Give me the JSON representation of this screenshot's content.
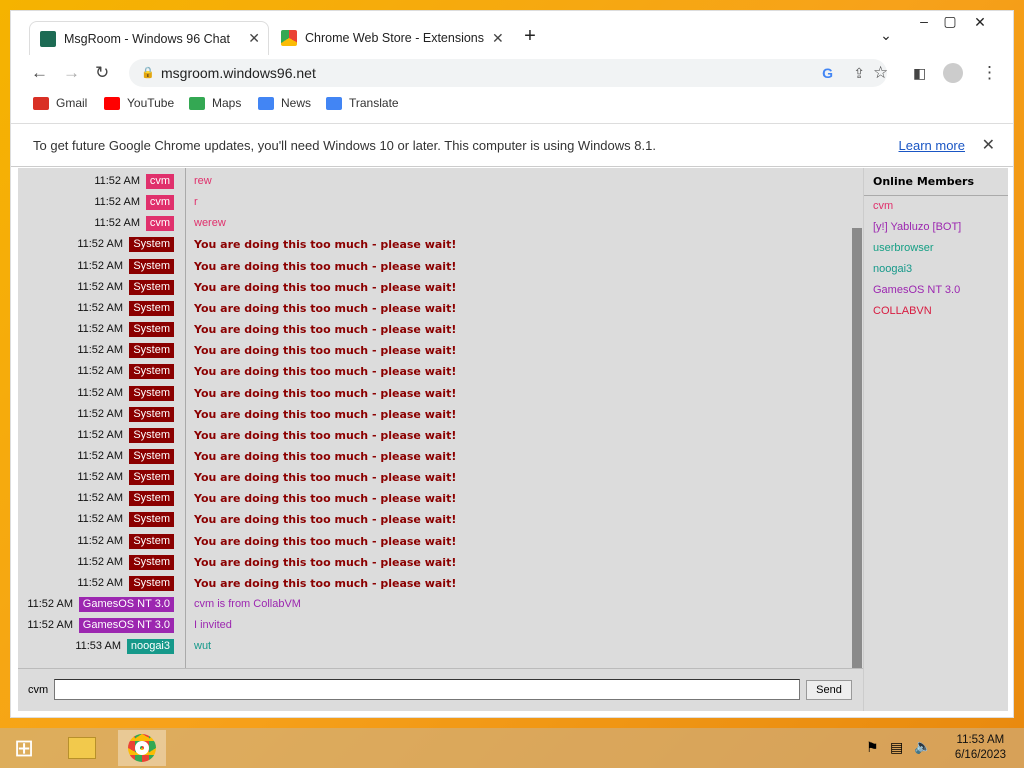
{
  "browser": {
    "tabs": [
      {
        "title": "MsgRoom - Windows 96 Chat"
      },
      {
        "title": "Chrome Web Store - Extensions"
      }
    ],
    "url": "msgroom.windows96.net",
    "bookmarks": [
      {
        "label": "Gmail",
        "color": "#d93025"
      },
      {
        "label": "YouTube",
        "color": "#ff0000"
      },
      {
        "label": "Maps",
        "color": "#34a853"
      },
      {
        "label": "News",
        "color": "#4285f4"
      },
      {
        "label": "Translate",
        "color": "#4285f4"
      }
    ],
    "infobar": {
      "text": "To get future Google Chrome updates, you'll need Windows 10 or later. This computer is using Windows 8.1.",
      "link": "Learn more"
    }
  },
  "chat": {
    "messages": [
      {
        "time": "11:52 AM",
        "user": "cvm",
        "color": "#e0306c",
        "text": "rew"
      },
      {
        "time": "11:52 AM",
        "user": "cvm",
        "color": "#e0306c",
        "text": "r"
      },
      {
        "time": "11:52 AM",
        "user": "cvm",
        "color": "#e0306c",
        "text": "werew"
      },
      {
        "time": "11:52 AM",
        "user": "System",
        "color": "#8b0000",
        "text": "You are doing this too much - please wait!",
        "system": true
      },
      {
        "time": "11:52 AM",
        "user": "System",
        "color": "#8b0000",
        "text": "You are doing this too much - please wait!",
        "system": true
      },
      {
        "time": "11:52 AM",
        "user": "System",
        "color": "#8b0000",
        "text": "You are doing this too much - please wait!",
        "system": true
      },
      {
        "time": "11:52 AM",
        "user": "System",
        "color": "#8b0000",
        "text": "You are doing this too much - please wait!",
        "system": true
      },
      {
        "time": "11:52 AM",
        "user": "System",
        "color": "#8b0000",
        "text": "You are doing this too much - please wait!",
        "system": true
      },
      {
        "time": "11:52 AM",
        "user": "System",
        "color": "#8b0000",
        "text": "You are doing this too much - please wait!",
        "system": true
      },
      {
        "time": "11:52 AM",
        "user": "System",
        "color": "#8b0000",
        "text": "You are doing this too much - please wait!",
        "system": true
      },
      {
        "time": "11:52 AM",
        "user": "System",
        "color": "#8b0000",
        "text": "You are doing this too much - please wait!",
        "system": true
      },
      {
        "time": "11:52 AM",
        "user": "System",
        "color": "#8b0000",
        "text": "You are doing this too much - please wait!",
        "system": true
      },
      {
        "time": "11:52 AM",
        "user": "System",
        "color": "#8b0000",
        "text": "You are doing this too much - please wait!",
        "system": true
      },
      {
        "time": "11:52 AM",
        "user": "System",
        "color": "#8b0000",
        "text": "You are doing this too much - please wait!",
        "system": true
      },
      {
        "time": "11:52 AM",
        "user": "System",
        "color": "#8b0000",
        "text": "You are doing this too much - please wait!",
        "system": true
      },
      {
        "time": "11:52 AM",
        "user": "System",
        "color": "#8b0000",
        "text": "You are doing this too much - please wait!",
        "system": true
      },
      {
        "time": "11:52 AM",
        "user": "System",
        "color": "#8b0000",
        "text": "You are doing this too much - please wait!",
        "system": true
      },
      {
        "time": "11:52 AM",
        "user": "System",
        "color": "#8b0000",
        "text": "You are doing this too much - please wait!",
        "system": true
      },
      {
        "time": "11:52 AM",
        "user": "System",
        "color": "#8b0000",
        "text": "You are doing this too much - please wait!",
        "system": true
      },
      {
        "time": "11:52 AM",
        "user": "System",
        "color": "#8b0000",
        "text": "You are doing this too much - please wait!",
        "system": true
      },
      {
        "time": "11:52 AM",
        "user": "GamesOS NT 3.0",
        "color": "#9c27b0",
        "text": "cvm is from CollabVM"
      },
      {
        "time": "11:52 AM",
        "user": "GamesOS NT 3.0",
        "color": "#9c27b0",
        "text": "I invited"
      },
      {
        "time": "11:53 AM",
        "user": "noogai3",
        "color": "#16998a",
        "text": "wut"
      }
    ],
    "current_user": "cvm",
    "input_value": "",
    "send_label": "Send"
  },
  "members": {
    "title": "Online Members",
    "list": [
      {
        "name": "cvm",
        "color": "#e0306c"
      },
      {
        "name": "[y!] Yabluzo [BOT]",
        "color": "#9c27b0"
      },
      {
        "name": "userbrowser",
        "color": "#16a085"
      },
      {
        "name": "noogai3",
        "color": "#16998a"
      },
      {
        "name": "GamesOS NT 3.0",
        "color": "#9c27b0"
      },
      {
        "name": "COLLABVN",
        "color": "#d81b40"
      }
    ]
  },
  "taskbar": {
    "time": "11:53 AM",
    "date": "6/16/2023"
  }
}
